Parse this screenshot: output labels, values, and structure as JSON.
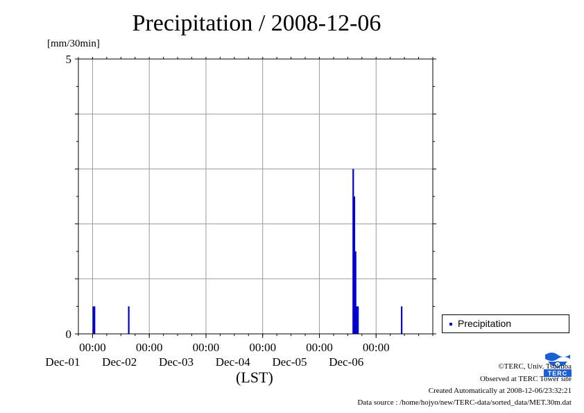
{
  "chart_data": {
    "type": "bar",
    "title": "Precipitation / 2008-12-06",
    "ylabel": "[mm/30min]",
    "xlabel": "(LST)",
    "ylim": [
      0,
      5
    ],
    "y_ticks": [
      "5",
      "0"
    ],
    "x_ticks": [
      {
        "time": "00:00",
        "date": "Dec-01"
      },
      {
        "time": "00:00",
        "date": "Dec-02"
      },
      {
        "time": "00:00",
        "date": "Dec-03"
      },
      {
        "time": "00:00",
        "date": "Dec-04"
      },
      {
        "time": "00:00",
        "date": "Dec-05"
      },
      {
        "time": "00:00",
        "date": "Dec-06"
      }
    ],
    "x_start": "2008-11-30T18:00",
    "x_end": "2008-12-06T24:00",
    "grid": true,
    "legend_position": "bottom-right",
    "series": [
      {
        "name": "Precipitation",
        "color": "#0000cc",
        "x": [
          "2008-12-01T00:00",
          "2008-12-01T00:30",
          "2008-12-01T15:00",
          "2008-12-05T14:00",
          "2008-12-05T14:30",
          "2008-12-05T15:00",
          "2008-12-05T15:30",
          "2008-12-05T16:00",
          "2008-12-06T10:30"
        ],
        "values": [
          0.5,
          0.5,
          0.5,
          3.0,
          2.5,
          1.5,
          0.5,
          0.5,
          0.5
        ]
      }
    ]
  },
  "footer": {
    "copyright": "©TERC, Univ. Tsukuba",
    "observed": "Observed at TERC Tower site",
    "created": "Created Automatically at 2008-12-06/23:32:21",
    "source": "Data source : /home/hojyo/new/TERC-data/sorted_data/MET.30m.dat"
  },
  "logo": {
    "text": "TERC",
    "color": "#1a5fd6"
  }
}
